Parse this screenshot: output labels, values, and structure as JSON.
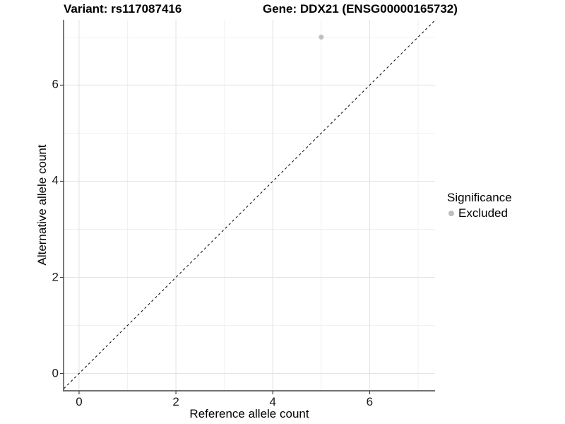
{
  "chart_data": {
    "type": "scatter",
    "title_left": "Variant: rs117087416",
    "title_right": "Gene: DDX21 (ENSG00000165732)",
    "xlabel": "Reference allele count",
    "ylabel": "Alternative allele count",
    "xlim": [
      -0.32,
      7.35
    ],
    "ylim": [
      -0.36,
      7.36
    ],
    "x_ticks": [
      0,
      2,
      4,
      6
    ],
    "y_ticks": [
      0,
      2,
      4,
      6
    ],
    "x_minor_gridlines": [
      1,
      3,
      5,
      7
    ],
    "y_minor_gridlines": [
      1,
      3,
      5,
      7
    ],
    "grid": "major and minor, light gray on white",
    "reference_line": {
      "type": "identity y=x",
      "style": "dashed",
      "color": "#000000"
    },
    "series": [
      {
        "name": "Excluded",
        "color": "#bebebe",
        "points": [
          {
            "x": 5,
            "y": 7
          }
        ]
      }
    ],
    "legend": {
      "title": "Significance",
      "position": "right",
      "entries": [
        {
          "label": "Excluded",
          "color": "#bebebe"
        }
      ]
    }
  }
}
